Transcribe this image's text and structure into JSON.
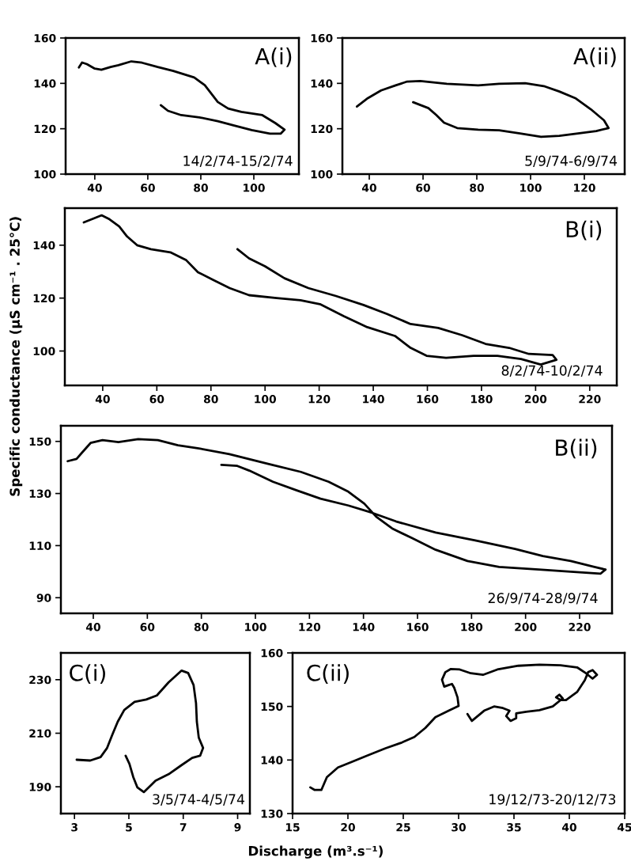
{
  "chart_data": [
    {
      "type": "line",
      "title": "A(i)",
      "annotations": [
        "14/2/74-15/2/74"
      ],
      "xlim": [
        29,
        117
      ],
      "ylim": [
        100,
        160
      ],
      "xticks": [
        40,
        60,
        80,
        100
      ],
      "yticks": [
        100,
        120,
        140,
        160
      ],
      "grid": false,
      "line_style": "solid",
      "marker": "none",
      "series": [
        {
          "color": "#000000",
          "x": [
            34,
            35.2,
            37,
            40,
            42.5,
            46,
            48.9,
            53.8,
            57.8,
            63.7,
            69.6,
            77.5,
            81.5,
            86.4,
            90.3,
            95.3,
            103.2,
            108.1,
            111.6,
            110.1,
            106.1,
            99.2,
            92.3,
            86.4,
            79.5,
            72.6,
            67.6,
            64.9
          ],
          "values": [
            147,
            149.2,
            148.5,
            146.5,
            146,
            147.2,
            148,
            149.7,
            149.1,
            147.2,
            145.5,
            142.6,
            139.2,
            131.8,
            128.9,
            127.4,
            126,
            122.5,
            119.6,
            117.8,
            117.8,
            119.4,
            121.5,
            123.3,
            125,
            126,
            127.9,
            130.4
          ]
        }
      ]
    },
    {
      "type": "line",
      "title": "A(ii)",
      "annotations": [
        "5/9/74-6/9/74"
      ],
      "xlim": [
        30,
        135
      ],
      "ylim": [
        100,
        160
      ],
      "xticks": [
        40,
        60,
        80,
        100,
        120
      ],
      "yticks": [
        100,
        120,
        140,
        160
      ],
      "grid": false,
      "line_style": "solid",
      "marker": "none",
      "series": [
        {
          "color": "#000000",
          "x": [
            35.4,
            39.5,
            44.4,
            49.8,
            54.1,
            59,
            68.8,
            80.5,
            88.3,
            98,
            104.9,
            110.7,
            116.6,
            122.4,
            127.3,
            129,
            124.4,
            117.6,
            110.7,
            103.9,
            96.1,
            88.3,
            80.5,
            72.7,
            67.8,
            64.9,
            62,
            56.3
          ],
          "values": [
            129.8,
            133.5,
            136.9,
            139.1,
            140.8,
            141,
            139.8,
            139.1,
            139.8,
            140.1,
            138.8,
            136.4,
            133.5,
            128.6,
            123.7,
            120.3,
            119,
            117.9,
            116.9,
            116.4,
            117.9,
            119.3,
            119.6,
            120.3,
            122.7,
            126.1,
            129.1,
            131.7
          ]
        }
      ]
    },
    {
      "type": "line",
      "title": "B(i)",
      "annotations": [
        "8/2/74-10/2/74"
      ],
      "xlim": [
        26,
        230
      ],
      "ylim": [
        87,
        154
      ],
      "xticks": [
        40,
        60,
        80,
        100,
        120,
        140,
        160,
        180,
        200,
        220
      ],
      "yticks": [
        100,
        120,
        140
      ],
      "grid": false,
      "line_style": "solid",
      "marker": "none",
      "series": [
        {
          "color": "#000000",
          "x": [
            33,
            36.7,
            39.6,
            42.5,
            46.1,
            49,
            52.7,
            57.8,
            65,
            70.9,
            75.2,
            81,
            86.9,
            94.1,
            104.3,
            113.1,
            120.3,
            129.1,
            137.8,
            148,
            153.8,
            159.7,
            166.9,
            177.1,
            185.9,
            194.6,
            201.9,
            207.7,
            206.3,
            197.5,
            190.2,
            181.5,
            172.8,
            164,
            153.8,
            145.1,
            136.4,
            126.2,
            116,
            107.2,
            100,
            94.1,
            89.8
          ],
          "values": [
            148.6,
            150.1,
            151.3,
            149.8,
            147.1,
            143.3,
            140,
            138.5,
            137.3,
            134.3,
            129.8,
            126.8,
            123.8,
            121.1,
            120,
            119.2,
            117.7,
            113.2,
            109,
            105.7,
            101.2,
            98.2,
            97.4,
            98.2,
            98.2,
            97,
            94.9,
            96.7,
            98.5,
            98.9,
            101.2,
            102.7,
            106,
            108.7,
            110.2,
            114,
            117.4,
            120.8,
            123.8,
            127.5,
            132,
            135,
            138.5
          ]
        }
      ]
    },
    {
      "type": "line",
      "title": "B(ii)",
      "ylabel": "Specific conductance (μS cm⁻¹ . 25°C)",
      "annotations": [
        "26/9/74-28/9/74"
      ],
      "xlim": [
        28,
        232
      ],
      "ylim": [
        84,
        156
      ],
      "xticks": [
        40,
        60,
        80,
        100,
        120,
        140,
        160,
        180,
        200,
        220
      ],
      "yticks": [
        90,
        110,
        130,
        150
      ],
      "grid": false,
      "line_style": "solid",
      "marker": "none",
      "series": [
        {
          "color": "#000000",
          "x": [
            30.5,
            33.8,
            36,
            39,
            43.4,
            49.3,
            56.6,
            63.9,
            71.3,
            78.6,
            90.4,
            105,
            116.8,
            127.1,
            134.4,
            140.3,
            144.7,
            150.6,
            157.9,
            166.7,
            178.5,
            190.2,
            204.9,
            216.7,
            227.7,
            229.6,
            225.5,
            216.7,
            206.4,
            196.1,
            181.4,
            166.7,
            152,
            143.2,
            134.4,
            124.1,
            115.3,
            106.5,
            97.7,
            93.3,
            87.4
          ],
          "values": [
            142.4,
            143.3,
            145.9,
            149.4,
            150.5,
            149.7,
            150.9,
            150.5,
            148.5,
            147.4,
            145.1,
            141.3,
            138.3,
            134.5,
            130.7,
            126.1,
            121.1,
            116.6,
            112.9,
            108.4,
            104.1,
            101.8,
            100.8,
            100,
            99.2,
            100.8,
            101.8,
            104.1,
            106,
            108.7,
            112,
            115,
            119.3,
            122.6,
            125.4,
            128,
            131.2,
            134.5,
            138.8,
            140.6,
            141
          ]
        }
      ]
    },
    {
      "type": "line",
      "title": "C(i)",
      "annotations": [
        "3/5/74-4/5/74"
      ],
      "xlim": [
        2.5,
        9.45
      ],
      "ylim": [
        180,
        240
      ],
      "xticks": [
        3,
        5,
        7,
        9
      ],
      "yticks": [
        190,
        210,
        230
      ],
      "grid": false,
      "line_style": "solid",
      "marker": "none",
      "series": [
        {
          "color": "#000000",
          "x": [
            3.08,
            3.58,
            3.96,
            4.2,
            4.39,
            4.59,
            4.83,
            5.21,
            5.64,
            6.03,
            6.46,
            6.94,
            7.18,
            7.38,
            7.47,
            7.5,
            7.57,
            7.73,
            7.62,
            7.33,
            6.94,
            6.46,
            5.98,
            5.55,
            5.31,
            5.16,
            5.02,
            4.88
          ],
          "values": [
            200.1,
            199.8,
            201.1,
            204.5,
            209.4,
            214.3,
            218.7,
            221.7,
            222.6,
            224.1,
            229,
            233.4,
            232.5,
            228,
            221.2,
            214.3,
            208.4,
            204.5,
            201.6,
            200.8,
            198.1,
            194.7,
            192.3,
            188,
            189.8,
            193.7,
            198.6,
            201.6
          ]
        }
      ]
    },
    {
      "type": "line",
      "title": "C(ii)",
      "xlabel": "Discharge (m³.s⁻¹)",
      "annotations": [
        "19/12/73-20/12/73"
      ],
      "xlim": [
        15,
        45
      ],
      "ylim": [
        130,
        160
      ],
      "xticks": [
        15,
        20,
        25,
        30,
        35,
        40,
        45
      ],
      "yticks": [
        130,
        140,
        150,
        160
      ],
      "grid": false,
      "line_style": "solid",
      "marker": "none",
      "series": [
        {
          "color": "#000000",
          "x": [
            16.6,
            17,
            17.6,
            18.1,
            19.1,
            20.3,
            21.7,
            23.4,
            24.8,
            26,
            27,
            27.9,
            29.1,
            30,
            29.9,
            29.6,
            29.4,
            29.1,
            28.7,
            28.5,
            28.8,
            29.3,
            30.1,
            31.1,
            32.2,
            33.5,
            35.4,
            37.3,
            39.2,
            40.7,
            41.5,
            42.1,
            42.5,
            42.1,
            41.7,
            41.4,
            40.7,
            39.7,
            39.2,
            38.8,
            39.1,
            39.4,
            38.5,
            37.3,
            36.1,
            35.2,
            35.2,
            34.7,
            34.3,
            34.6,
            34,
            33.2,
            32.3,
            31.2,
            30.8
          ],
          "values": [
            134.9,
            134.4,
            134.4,
            136.8,
            138.6,
            139.6,
            140.8,
            142.2,
            143.2,
            144.3,
            146,
            148,
            149.2,
            150.1,
            151.7,
            153.5,
            154.2,
            154,
            153.7,
            155,
            156.4,
            157,
            156.9,
            156.2,
            155.9,
            156.9,
            157.6,
            157.8,
            157.7,
            157.3,
            156.2,
            155.2,
            155.9,
            156.8,
            156.4,
            154.9,
            152.7,
            151.2,
            151.2,
            151.7,
            152.2,
            151.5,
            150,
            149.3,
            149,
            148.7,
            147.8,
            147.3,
            148.2,
            149.2,
            149.7,
            150,
            149.2,
            147.3,
            148.6
          ]
        }
      ]
    }
  ]
}
